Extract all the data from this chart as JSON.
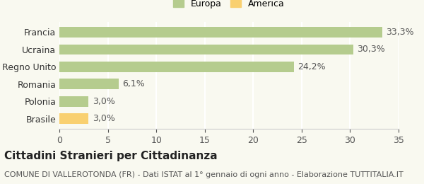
{
  "categories": [
    "Francia",
    "Ucraina",
    "Regno Unito",
    "Romania",
    "Polonia",
    "Brasile"
  ],
  "values": [
    33.3,
    30.3,
    24.2,
    6.1,
    3.0,
    3.0
  ],
  "labels": [
    "33,3%",
    "30,3%",
    "24,2%",
    "6,1%",
    "3,0%",
    "3,0%"
  ],
  "colors": [
    "#b5cc8e",
    "#b5cc8e",
    "#b5cc8e",
    "#b5cc8e",
    "#b5cc8e",
    "#f9d070"
  ],
  "europa_color": "#b5cc8e",
  "america_color": "#f9d070",
  "legend_labels": [
    "Europa",
    "America"
  ],
  "xlim": [
    0,
    35
  ],
  "xticks": [
    0,
    5,
    10,
    15,
    20,
    25,
    30,
    35
  ],
  "title": "Cittadini Stranieri per Cittadinanza",
  "subtitle": "COMUNE DI VALLEROTONDA (FR) - Dati ISTAT al 1° gennaio di ogni anno - Elaborazione TUTTITALIA.IT",
  "bg_color": "#f9f9f0",
  "title_fontsize": 11,
  "subtitle_fontsize": 8,
  "label_fontsize": 9,
  "tick_fontsize": 9
}
